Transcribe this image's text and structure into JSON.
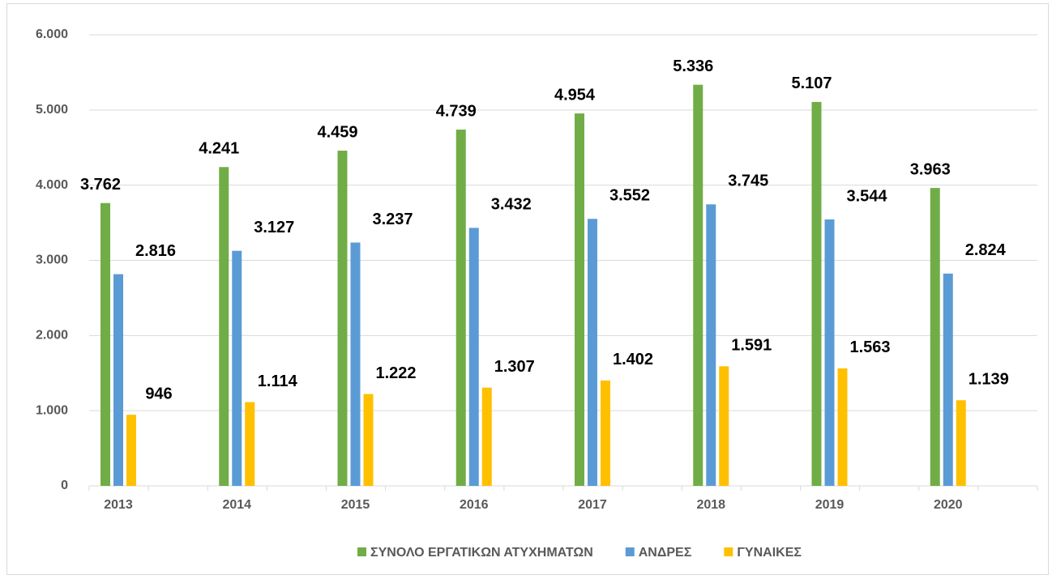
{
  "chart_data": {
    "type": "bar",
    "categories": [
      "2013",
      "2014",
      "2015",
      "2016",
      "2017",
      "2018",
      "2019",
      "2020"
    ],
    "series": [
      {
        "name": "ΣΥΝΟΛΟ ΕΡΓΑΤΙΚΩΝ ΑΤΥΧΗΜΑΤΩΝ",
        "color": "#70ad47",
        "values": [
          3762,
          4241,
          4459,
          4739,
          4954,
          5336,
          5107,
          3963
        ],
        "value_labels": [
          "3.762",
          "4.241",
          "4.459",
          "4.739",
          "4.954",
          "5.336",
          "5.107",
          "3.963"
        ]
      },
      {
        "name": "ΑΝΔΡΕΣ",
        "color": "#5b9bd5",
        "values": [
          2816,
          3127,
          3237,
          3432,
          3552,
          3745,
          3544,
          2824
        ],
        "value_labels": [
          "2.816",
          "3.127",
          "3.237",
          "3.432",
          "3.552",
          "3.745",
          "3.544",
          "2.824"
        ]
      },
      {
        "name": "ΓΥΝΑΙΚΕΣ",
        "color": "#ffc000",
        "values": [
          946,
          1114,
          1222,
          1307,
          1402,
          1591,
          1563,
          1139
        ],
        "value_labels": [
          "946",
          "1.114",
          "1.222",
          "1.307",
          "1.402",
          "1.591",
          "1.563",
          "1.139"
        ]
      }
    ],
    "ylim": [
      0,
      6000
    ],
    "yticks": [
      0,
      {
        "value": 1000,
        "label": "1.000"
      },
      {
        "value": 2000,
        "label": "2.000"
      },
      {
        "value": 3000,
        "label": "3.000"
      },
      {
        "value": 4000,
        "label": "4.000"
      },
      {
        "value": 5000,
        "label": "5.000"
      },
      {
        "value": 6000,
        "label": "6.000"
      }
    ],
    "grid": true,
    "legend": "bottom"
  }
}
